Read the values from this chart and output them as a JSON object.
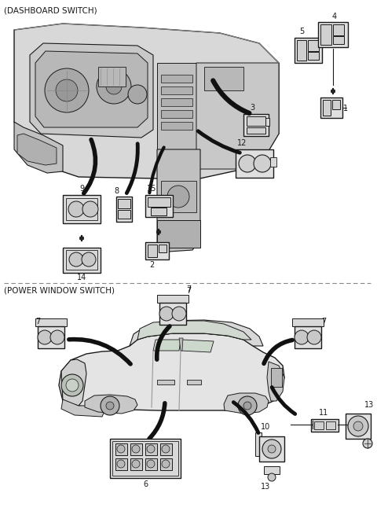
{
  "title_top": "(DASHBOARD SWITCH)",
  "title_bottom": "(POWER WINDOW SWITCH)",
  "bg_color": "#ffffff",
  "line_color": "#1a1a1a",
  "divider_color": "#888888",
  "text_color": "#1a1a1a",
  "fig_width": 4.8,
  "fig_height": 6.55,
  "dpi": 100
}
